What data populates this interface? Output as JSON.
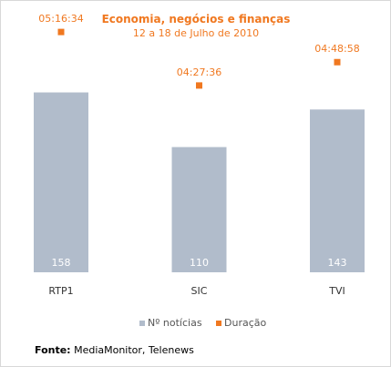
{
  "chart_data": {
    "type": "bar",
    "title": "Economia, negócios e finanças",
    "subtitle": "12 a 18 de Julho de 2010",
    "categories": [
      "RTP1",
      "SIC",
      "TVI"
    ],
    "series": [
      {
        "name": "Nº notícias",
        "values": [
          158,
          110,
          143
        ],
        "color": "#b1bccb"
      },
      {
        "name": "Duração",
        "values": [
          "05:16:34",
          "04:27:36",
          "04:48:58"
        ],
        "color": "#f07820"
      }
    ],
    "legend_position": "bottom"
  },
  "source": {
    "label": "Fonte:",
    "text": "MediaMonitor, Telenews"
  }
}
